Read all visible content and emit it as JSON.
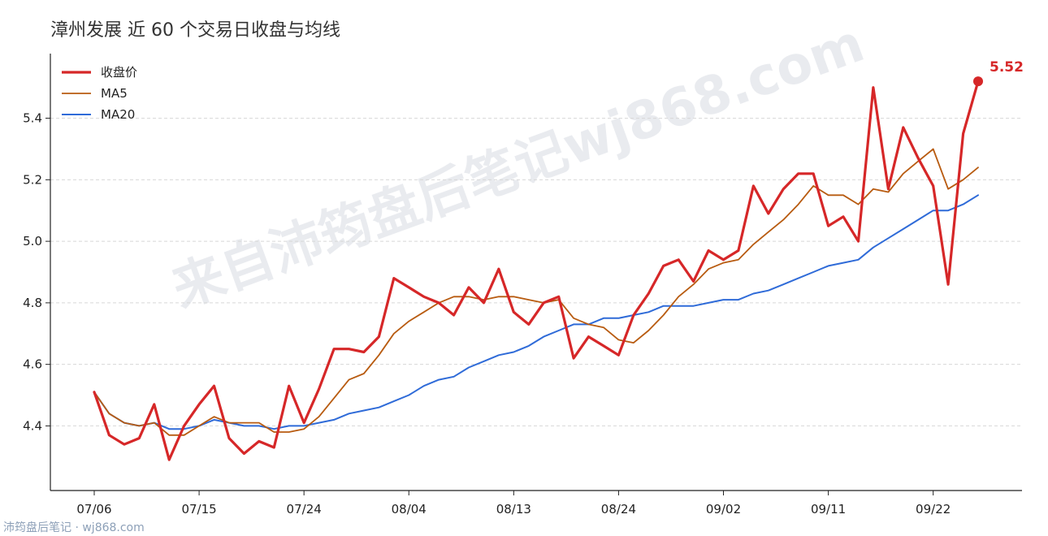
{
  "footer": "沛筠盘后笔记 · wj868.com",
  "watermark": "来自沛筠盘后笔记wj868.com",
  "chart_data": {
    "type": "line",
    "title": "漳州发展 近 60 个交易日收盘与均线",
    "xlabel": "",
    "ylabel": "",
    "ylim": [
      4.19,
      5.61
    ],
    "yticks": [
      4.4,
      4.6,
      4.8,
      5.0,
      5.2,
      5.4
    ],
    "ytick_labels": [
      "4.4",
      "4.6",
      "4.8",
      "5.0",
      "5.2",
      "5.4"
    ],
    "xticks": [
      {
        "index": 0,
        "label": "07/06"
      },
      {
        "index": 7,
        "label": "07/15"
      },
      {
        "index": 14,
        "label": "07/24"
      },
      {
        "index": 21,
        "label": "08/04"
      },
      {
        "index": 28,
        "label": "08/13"
      },
      {
        "index": 35,
        "label": "08/24"
      },
      {
        "index": 42,
        "label": "09/02"
      },
      {
        "index": 49,
        "label": "09/11"
      },
      {
        "index": 56,
        "label": "09/22"
      }
    ],
    "grid": "y-dashed",
    "legend_position": "top-left",
    "last_value_label": "5.52",
    "colors": {
      "close": "#d62728",
      "ma5": "#b85b10",
      "ma20": "#2f6bd8"
    },
    "series": [
      {
        "name": "收盘价",
        "values": [
          4.51,
          4.37,
          4.34,
          4.36,
          4.47,
          4.29,
          4.4,
          4.47,
          4.53,
          4.36,
          4.31,
          4.35,
          4.33,
          4.53,
          4.41,
          4.52,
          4.65,
          4.65,
          4.64,
          4.69,
          4.88,
          4.85,
          4.82,
          4.8,
          4.76,
          4.85,
          4.8,
          4.91,
          4.77,
          4.73,
          4.8,
          4.82,
          4.62,
          4.69,
          4.66,
          4.63,
          4.76,
          4.83,
          4.92,
          4.94,
          4.87,
          4.97,
          4.94,
          4.97,
          5.18,
          5.09,
          5.17,
          5.22,
          5.22,
          5.05,
          5.08,
          5.0,
          5.5,
          5.17,
          5.37,
          5.27,
          5.18,
          4.86,
          5.35,
          5.52
        ]
      },
      {
        "name": "MA5",
        "values": [
          4.51,
          4.44,
          4.41,
          4.4,
          4.41,
          4.37,
          4.37,
          4.4,
          4.43,
          4.41,
          4.41,
          4.41,
          4.38,
          4.38,
          4.39,
          4.43,
          4.49,
          4.55,
          4.57,
          4.63,
          4.7,
          4.74,
          4.77,
          4.8,
          4.82,
          4.82,
          4.81,
          4.82,
          4.82,
          4.81,
          4.8,
          4.81,
          4.75,
          4.73,
          4.72,
          4.68,
          4.67,
          4.71,
          4.76,
          4.82,
          4.86,
          4.91,
          4.93,
          4.94,
          4.99,
          5.03,
          5.07,
          5.12,
          5.18,
          5.15,
          5.15,
          5.12,
          5.17,
          5.16,
          5.22,
          5.26,
          5.3,
          5.17,
          5.2,
          5.24
        ]
      },
      {
        "name": "MA20",
        "values": [
          4.51,
          4.44,
          4.41,
          4.4,
          4.41,
          4.39,
          4.39,
          4.4,
          4.42,
          4.41,
          4.4,
          4.4,
          4.39,
          4.4,
          4.4,
          4.41,
          4.42,
          4.44,
          4.45,
          4.46,
          4.48,
          4.5,
          4.53,
          4.55,
          4.56,
          4.59,
          4.61,
          4.63,
          4.64,
          4.66,
          4.69,
          4.71,
          4.73,
          4.73,
          4.75,
          4.75,
          4.76,
          4.77,
          4.79,
          4.79,
          4.79,
          4.8,
          4.81,
          4.81,
          4.83,
          4.84,
          4.86,
          4.88,
          4.9,
          4.92,
          4.93,
          4.94,
          4.98,
          5.01,
          5.04,
          5.07,
          5.1,
          5.1,
          5.12,
          5.15
        ]
      }
    ]
  }
}
